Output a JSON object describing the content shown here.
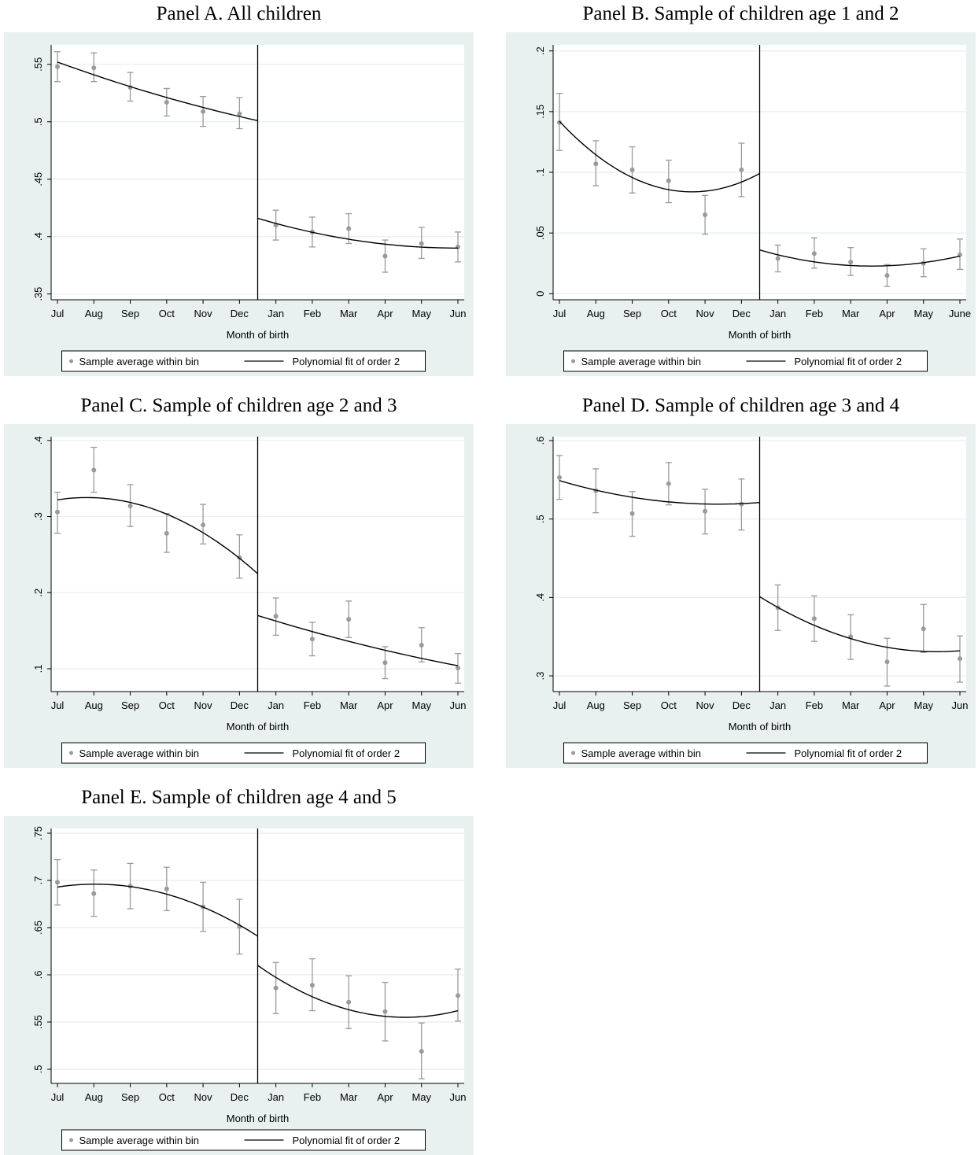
{
  "colors": {
    "panel_bg": "#e8f0f0",
    "plot_bg": "#ffffff",
    "grid": "#e6eeee",
    "marker": "#9a9a9a",
    "fit_line": "#000000"
  },
  "chart_data": [
    {
      "type": "scatter",
      "title": "Panel A. All children",
      "xlabel": "Month of birth",
      "ylabel": "",
      "categories": [
        "Jul",
        "Aug",
        "Sep",
        "Oct",
        "Nov",
        "Dec",
        "Jan",
        "Feb",
        "Mar",
        "Apr",
        "May",
        "Jun"
      ],
      "yticks": [
        0.35,
        0.4,
        0.45,
        0.5,
        0.55
      ],
      "ytick_labels": [
        ".35",
        ".4",
        ".45",
        ".5",
        ".55"
      ],
      "ylim": [
        0.345,
        0.567
      ],
      "grid": true,
      "legend_position": "bottom",
      "cutoff_between": [
        "Dec",
        "Jan"
      ],
      "series": [
        {
          "name": "Sample average within bin",
          "kind": "points_with_ci",
          "values": [
            0.548,
            0.547,
            0.53,
            0.517,
            0.509,
            0.507,
            0.41,
            0.404,
            0.407,
            0.383,
            0.394,
            0.391
          ],
          "ci_low": [
            0.535,
            0.535,
            0.518,
            0.505,
            0.496,
            0.494,
            0.397,
            0.391,
            0.394,
            0.369,
            0.381,
            0.378
          ],
          "ci_high": [
            0.561,
            0.56,
            0.543,
            0.529,
            0.522,
            0.521,
            0.423,
            0.417,
            0.42,
            0.397,
            0.408,
            0.404
          ]
        },
        {
          "name": "Polynomial fit of order 2",
          "kind": "fit_line",
          "left": {
            "x": [
              0,
              5.5
            ],
            "y": [
              0.552,
              0.501
            ],
            "min": null
          },
          "right": {
            "x": [
              5.5,
              11
            ],
            "y": [
              0.416,
              0.39
            ],
            "min": {
              "x": 11,
              "y": 0.39
            }
          }
        }
      ]
    },
    {
      "type": "scatter",
      "title": "Panel B. Sample of children age 1 and 2",
      "xlabel": "Month of birth",
      "ylabel": "",
      "categories": [
        "Jul",
        "Aug",
        "Sep",
        "Oct",
        "Nov",
        "Dec",
        "Jan",
        "Feb",
        "Mar",
        "Apr",
        "May",
        "June"
      ],
      "yticks": [
        0,
        0.05,
        0.1,
        0.15,
        0.2
      ],
      "ytick_labels": [
        "0",
        ".05",
        ".1",
        ".15",
        ".2"
      ],
      "ylim": [
        -0.005,
        0.205
      ],
      "grid": true,
      "legend_position": "bottom",
      "cutoff_between": [
        "Dec",
        "Jan"
      ],
      "series": [
        {
          "name": "Sample average within bin",
          "kind": "points_with_ci",
          "values": [
            0.141,
            0.107,
            0.102,
            0.093,
            0.065,
            0.102,
            0.029,
            0.033,
            0.026,
            0.015,
            0.025,
            0.032
          ],
          "ci_low": [
            0.118,
            0.089,
            0.083,
            0.075,
            0.049,
            0.08,
            0.018,
            0.021,
            0.015,
            0.006,
            0.014,
            0.02
          ],
          "ci_high": [
            0.165,
            0.126,
            0.121,
            0.11,
            0.081,
            0.124,
            0.04,
            0.046,
            0.038,
            0.024,
            0.037,
            0.045
          ]
        },
        {
          "name": "Polynomial fit of order 2",
          "kind": "fit_line",
          "left": {
            "x": [
              0,
              5.5
            ],
            "y": [
              0.142,
              0.099
            ],
            "min": {
              "x": 3.8,
              "y": 0.084
            }
          },
          "right": {
            "x": [
              5.5,
              11
            ],
            "y": [
              0.036,
              0.031
            ],
            "min": {
              "x": 9.0,
              "y": 0.023
            }
          }
        }
      ]
    },
    {
      "type": "scatter",
      "title": "Panel C. Sample of children age 2 and 3",
      "xlabel": "Month of birth",
      "ylabel": "",
      "categories": [
        "Jul",
        "Aug",
        "Sep",
        "Oct",
        "Nov",
        "Dec",
        "Jan",
        "Feb",
        "Mar",
        "Apr",
        "May",
        "Jun"
      ],
      "yticks": [
        0.1,
        0.2,
        0.3,
        0.4
      ],
      "ytick_labels": [
        ".1",
        ".2",
        ".3",
        ".4"
      ],
      "ylim": [
        0.07,
        0.405
      ],
      "grid": true,
      "legend_position": "bottom",
      "cutoff_between": [
        "Dec",
        "Jan"
      ],
      "series": [
        {
          "name": "Sample average within bin",
          "kind": "points_with_ci",
          "values": [
            0.306,
            0.361,
            0.314,
            0.278,
            0.289,
            0.246,
            0.169,
            0.139,
            0.165,
            0.108,
            0.131,
            0.101
          ],
          "ci_low": [
            0.278,
            0.332,
            0.287,
            0.253,
            0.264,
            0.219,
            0.144,
            0.117,
            0.141,
            0.087,
            0.109,
            0.081
          ],
          "ci_high": [
            0.332,
            0.391,
            0.342,
            0.304,
            0.316,
            0.276,
            0.193,
            0.161,
            0.189,
            0.129,
            0.154,
            0.12
          ]
        },
        {
          "name": "Polynomial fit of order 2",
          "kind": "fit_line",
          "left": {
            "x": [
              0,
              5.5
            ],
            "y": [
              0.322,
              0.225
            ],
            "max": {
              "x": 0.8,
              "y": 0.325
            }
          },
          "right": {
            "x": [
              5.5,
              11
            ],
            "y": [
              0.17,
              0.104
            ],
            "min": null
          }
        }
      ]
    },
    {
      "type": "scatter",
      "title": "Panel D. Sample of children age 3 and 4",
      "xlabel": "Month of birth",
      "ylabel": "",
      "categories": [
        "Jul",
        "Aug",
        "Sep",
        "Oct",
        "Nov",
        "Dec",
        "Jan",
        "Feb",
        "Mar",
        "Apr",
        "May",
        "Jun"
      ],
      "yticks": [
        0.3,
        0.4,
        0.5,
        0.6
      ],
      "ytick_labels": [
        ".3",
        ".4",
        ".5",
        ".6"
      ],
      "ylim": [
        0.28,
        0.605
      ],
      "grid": true,
      "legend_position": "bottom",
      "cutoff_between": [
        "Dec",
        "Jan"
      ],
      "series": [
        {
          "name": "Sample average within bin",
          "kind": "points_with_ci",
          "values": [
            0.553,
            0.536,
            0.507,
            0.545,
            0.51,
            0.519,
            0.387,
            0.373,
            0.35,
            0.318,
            0.36,
            0.322
          ],
          "ci_low": [
            0.525,
            0.508,
            0.478,
            0.518,
            0.481,
            0.486,
            0.358,
            0.344,
            0.321,
            0.287,
            0.33,
            0.292
          ],
          "ci_high": [
            0.581,
            0.564,
            0.535,
            0.572,
            0.538,
            0.551,
            0.416,
            0.402,
            0.378,
            0.348,
            0.391,
            0.351
          ]
        },
        {
          "name": "Polynomial fit of order 2",
          "kind": "fit_line",
          "left": {
            "x": [
              0,
              5.5
            ],
            "y": [
              0.549,
              0.521
            ],
            "min": {
              "x": 4.2,
              "y": 0.519
            }
          },
          "right": {
            "x": [
              5.5,
              11
            ],
            "y": [
              0.401,
              0.332
            ],
            "min": {
              "x": 10.6,
              "y": 0.331
            }
          }
        }
      ]
    },
    {
      "type": "scatter",
      "title": "Panel E. Sample of children age 4 and 5",
      "xlabel": "Month of birth",
      "ylabel": "",
      "categories": [
        "Jul",
        "Aug",
        "Sep",
        "Oct",
        "Nov",
        "Dec",
        "Jan",
        "Feb",
        "Mar",
        "Apr",
        "May",
        "Jun"
      ],
      "yticks": [
        0.5,
        0.55,
        0.6,
        0.65,
        0.7,
        0.75
      ],
      "ytick_labels": [
        ".5",
        ".55",
        ".6",
        ".65",
        ".7",
        ".75"
      ],
      "ylim": [
        0.485,
        0.755
      ],
      "grid": true,
      "legend_position": "bottom",
      "cutoff_between": [
        "Dec",
        "Jan"
      ],
      "series": [
        {
          "name": "Sample average within bin",
          "kind": "points_with_ci",
          "values": [
            0.698,
            0.686,
            0.694,
            0.691,
            0.672,
            0.651,
            0.586,
            0.589,
            0.571,
            0.561,
            0.519,
            0.578
          ],
          "ci_low": [
            0.674,
            0.662,
            0.67,
            0.668,
            0.646,
            0.622,
            0.559,
            0.562,
            0.543,
            0.53,
            0.49,
            0.551
          ],
          "ci_high": [
            0.722,
            0.711,
            0.718,
            0.714,
            0.698,
            0.68,
            0.613,
            0.617,
            0.599,
            0.592,
            0.549,
            0.606
          ]
        },
        {
          "name": "Polynomial fit of order 2",
          "kind": "fit_line",
          "left": {
            "x": [
              0,
              5.5
            ],
            "y": [
              0.693,
              0.641
            ],
            "max": {
              "x": 1.1,
              "y": 0.696
            }
          },
          "right": {
            "x": [
              5.5,
              11
            ],
            "y": [
              0.61,
              0.562
            ],
            "min": {
              "x": 9.6,
              "y": 0.555
            }
          }
        }
      ]
    }
  ]
}
